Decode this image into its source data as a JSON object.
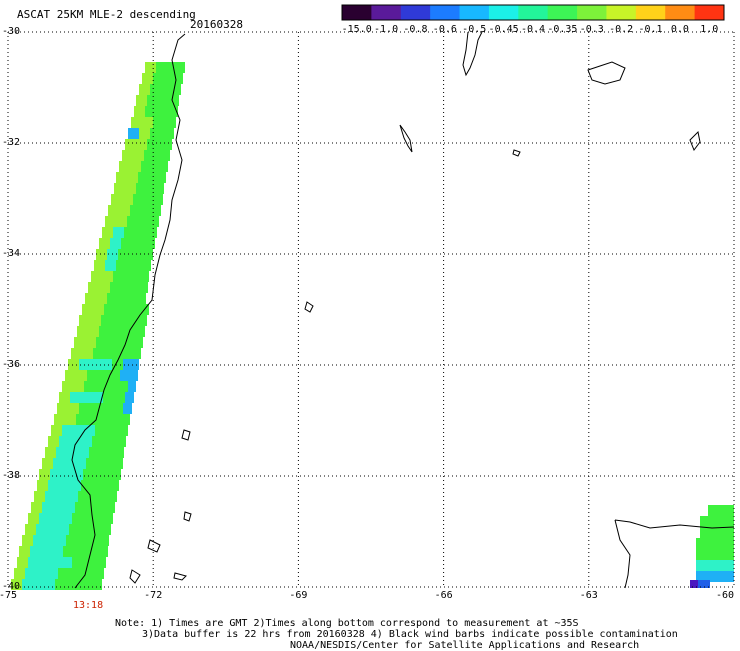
{
  "header": {
    "title": "ASCAT 25KM MLE-2 descending",
    "date": "20160328"
  },
  "colorbar": {
    "labels": [
      "-15.0",
      "-1.0",
      "-0.8",
      "-0.6",
      "-0.5",
      "-0.45",
      "-0.4",
      "-0.35",
      "-0.3",
      "-0.2",
      "-0.1",
      "0.0",
      "1.0"
    ],
    "colors": [
      "#2a0030",
      "#5a1a9a",
      "#2f3ad8",
      "#1c7cff",
      "#18b8ff",
      "#1cf0e8",
      "#23f59a",
      "#3df556",
      "#7df23a",
      "#c8f428",
      "#ffd21a",
      "#ff8c14",
      "#ff3412"
    ]
  },
  "axes": {
    "y_labels": [
      "-30",
      "-32",
      "-34",
      "-36",
      "-38",
      "-40"
    ],
    "x_labels": [
      "-75",
      "-72",
      "-69",
      "-66",
      "-63",
      "-60"
    ],
    "lat_range": [
      -40,
      -30
    ],
    "lon_range": [
      -75,
      -60
    ]
  },
  "time_label": {
    "text": "13:18",
    "color": "#cc2200"
  },
  "notes": {
    "line1": "Note: 1) Times are GMT 2)Times along bottom correspond to measurement at ~35S",
    "line2": "3)Data buffer is 22 hrs from 20160328 4) Black wind barbs indicate possible contamination",
    "line3": "NOAA/NESDIS/Center for Satellite Applications and Research"
  }
}
